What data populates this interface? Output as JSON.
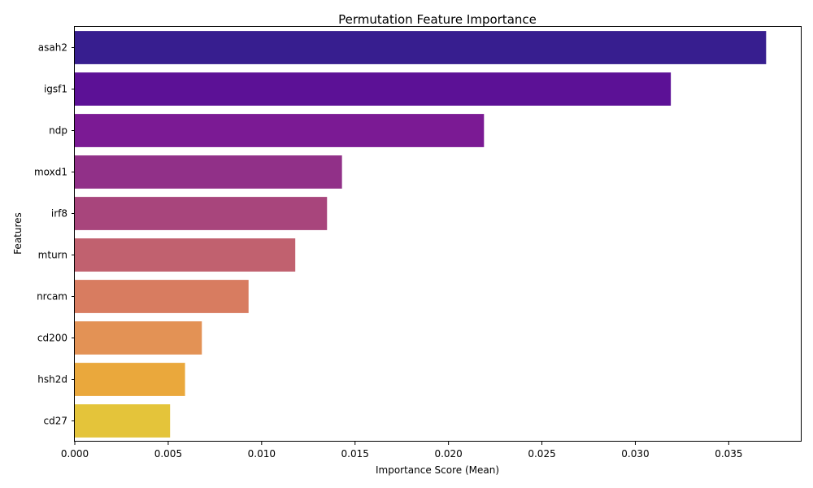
{
  "chart_data": {
    "type": "bar",
    "orientation": "horizontal",
    "title": "Permutation Feature Importance",
    "xlabel": "Importance Score (Mean)",
    "ylabel": "Features",
    "xlim": [
      0,
      0.0389
    ],
    "xticks": [
      0.0,
      0.005,
      0.01,
      0.015,
      0.02,
      0.025,
      0.03,
      0.035
    ],
    "xtick_labels": [
      "0.000",
      "0.005",
      "0.010",
      "0.015",
      "0.020",
      "0.025",
      "0.030",
      "0.035"
    ],
    "grid": false,
    "categories": [
      "asah2",
      "igsf1",
      "ndp",
      "moxd1",
      "irf8",
      "mturn",
      "nrcam",
      "cd200",
      "hsh2d",
      "cd27"
    ],
    "values": [
      0.037,
      0.0319,
      0.0219,
      0.0143,
      0.0135,
      0.0118,
      0.0093,
      0.0068,
      0.0059,
      0.0051
    ],
    "colors": [
      "#371e8f",
      "#5c1196",
      "#7b1a94",
      "#913088",
      "#a8457c",
      "#c1616f",
      "#d87c60",
      "#e39255",
      "#eaa83c",
      "#e4c43a"
    ]
  }
}
